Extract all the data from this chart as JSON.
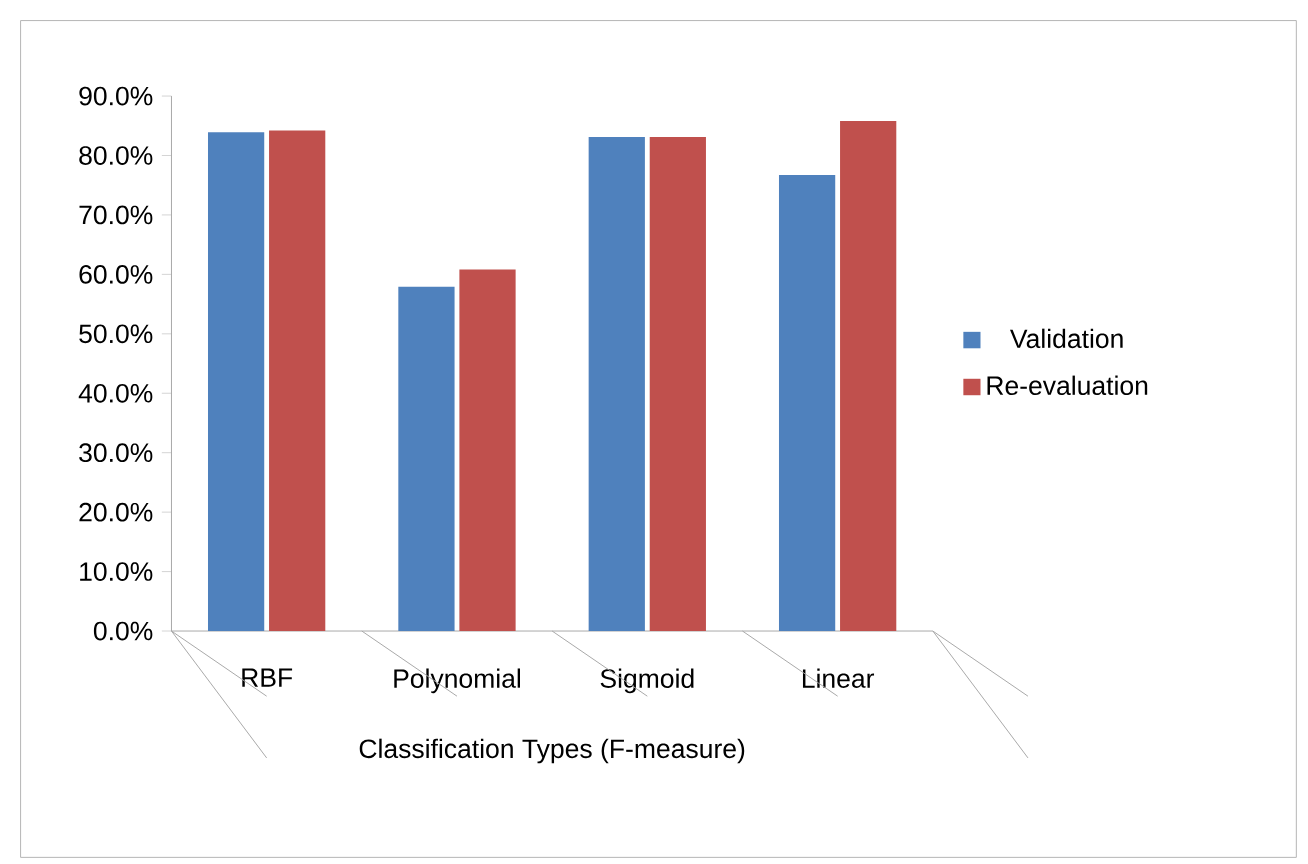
{
  "chart_data": {
    "type": "bar",
    "xlabel": "Classification Types (F-measure)",
    "categories": [
      "RBF",
      "Polynomial",
      "Sigmoid",
      "Linear"
    ],
    "series": [
      {
        "name": "Validation",
        "color": "#4f81bd",
        "values": [
          83.9,
          57.9,
          83.1,
          76.7
        ]
      },
      {
        "name": "Re-evaluation",
        "color": "#c0504d",
        "values": [
          84.2,
          60.8,
          83.1,
          85.8
        ]
      }
    ],
    "ylim": [
      0,
      90
    ],
    "yticks": [
      {
        "value": 0,
        "label": "0.0%"
      },
      {
        "value": 10,
        "label": "10.0%"
      },
      {
        "value": 20,
        "label": "20.0%"
      },
      {
        "value": 30,
        "label": "30.0%"
      },
      {
        "value": 40,
        "label": "40.0%"
      },
      {
        "value": 50,
        "label": "50.0%"
      },
      {
        "value": 60,
        "label": "60.0%"
      },
      {
        "value": 70,
        "label": "70.0%"
      },
      {
        "value": 80,
        "label": "80.0%"
      },
      {
        "value": 90,
        "label": "90.0%"
      }
    ],
    "grid": false,
    "legend": "right"
  }
}
